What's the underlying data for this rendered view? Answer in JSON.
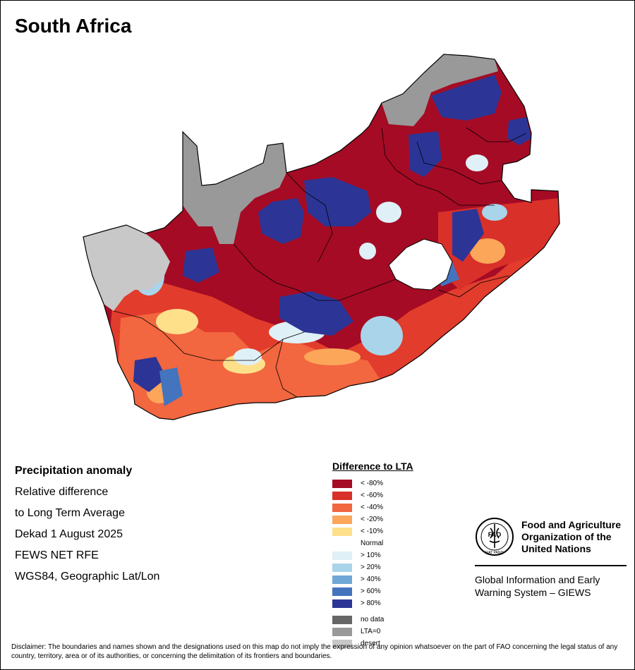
{
  "title": "South Africa",
  "info": {
    "line1": "Precipitation anomaly",
    "line2": "Relative difference",
    "line3": "to Long Term Average",
    "line4": "Dekad 1 August 2025",
    "line5": "FEWS NET RFE",
    "line6": "WGS84, Geographic Lat/Lon"
  },
  "legend": {
    "title": "Difference to LTA",
    "classes": [
      {
        "label": "< -80%",
        "color": "#a50b24"
      },
      {
        "label": "< -60%",
        "color": "#d9302a"
      },
      {
        "label": "< -40%",
        "color": "#f26640"
      },
      {
        "label": "< -20%",
        "color": "#fca65a"
      },
      {
        "label": "< -10%",
        "color": "#fee08b"
      },
      {
        "label": "Normal",
        "color": "#ffffff"
      },
      {
        "label": "> 10%",
        "color": "#dff0f7"
      },
      {
        "label": "> 20%",
        "color": "#a9d4ea"
      },
      {
        "label": "> 40%",
        "color": "#6fa8d6"
      },
      {
        "label": "> 60%",
        "color": "#4474bd"
      },
      {
        "label": "> 80%",
        "color": "#2c3596"
      }
    ],
    "extra": [
      {
        "label": "no data",
        "color": "#666666"
      },
      {
        "label": "LTA=0",
        "color": "#999999"
      },
      {
        "label": "desert",
        "color": "#c8c8c8"
      }
    ]
  },
  "fao": {
    "name_line1": "Food and Agriculture",
    "name_line2": "Organization of the",
    "name_line3": "United Nations",
    "emblem_text": "FAO",
    "emblem_motto": "FIAT PANIS",
    "giews_line1": "Global Information and Early",
    "giews_line2": "Warning System – GIEWS"
  },
  "disclaimer": "Disclaimer: The boundaries and names shown and the designations used on this map do not imply the expression of any opinion whatsoever on the part of FAO concerning the legal status of any country, territory, area or of its authorities, or concerning the delimitation of its frontiers and boundaries."
}
